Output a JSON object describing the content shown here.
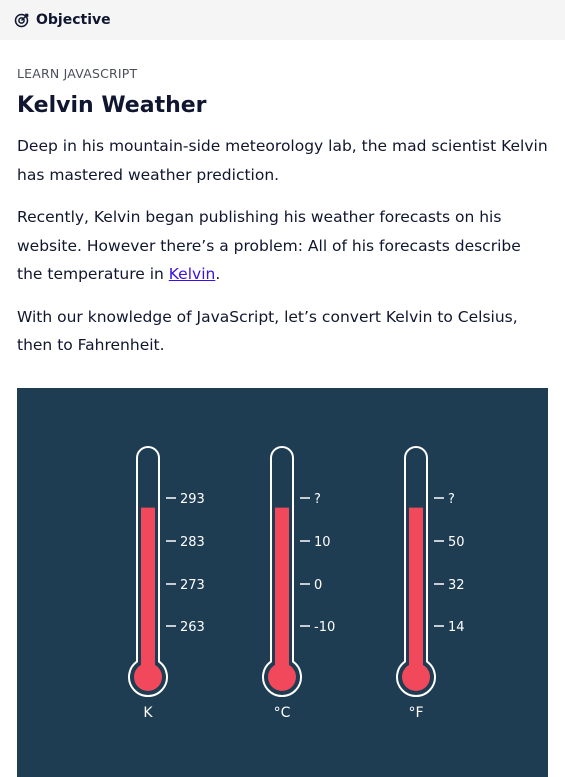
{
  "header": {
    "objective_label": "Objective",
    "icon": "target-check-icon"
  },
  "lesson": {
    "eyebrow": "LEARN JAVASCRIPT",
    "title": "Kelvin Weather",
    "para1": "Deep in his mountain-side meteorology lab, the mad scientist Kelvin has mastered weather prediction.",
    "para2_before": "Recently, Kelvin began publishing his weather forecasts on his website. However there’s a problem: All of his forecasts describe the temperature in ",
    "para2_link": "Kelvin",
    "para2_after": ".",
    "para3": "With our knowledge of JavaScript, let’s convert Kelvin to Celsius, then to Fahrenheit."
  },
  "thermometers": {
    "colors": {
      "background": "#1f3d52",
      "fill": "#f2485b",
      "outline": "#ffffff"
    },
    "fill_level_fraction": 0.74,
    "units": [
      {
        "unit": "K",
        "ticks": [
          "293",
          "283",
          "273",
          "263"
        ]
      },
      {
        "unit": "°C",
        "ticks": [
          "?",
          "10",
          "0",
          "-10"
        ]
      },
      {
        "unit": "°F",
        "ticks": [
          "?",
          "50",
          "32",
          "14"
        ]
      }
    ]
  }
}
